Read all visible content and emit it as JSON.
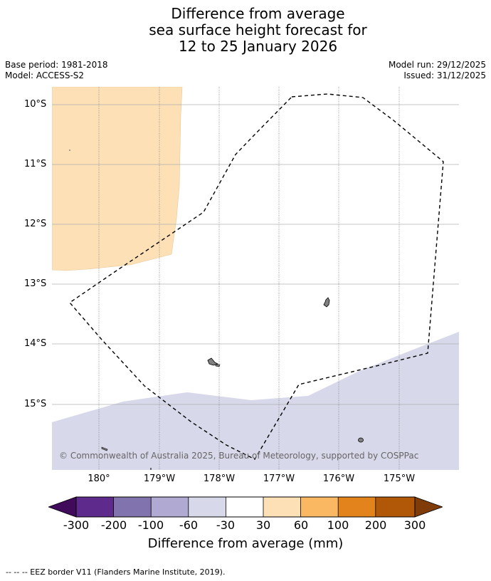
{
  "title": {
    "line1": "Difference from average",
    "line2": "sea surface height forecast for",
    "line3": "12 to 25 January 2026"
  },
  "meta": {
    "base_period": "Base period: 1981-2018",
    "model": "Model: ACCESS-S2",
    "model_run": "Model run: 29/12/2025",
    "issued": "Issued: 31/12/2025"
  },
  "latitude_labels": [
    "10°S",
    "11°S",
    "12°S",
    "13°S",
    "14°S",
    "15°S"
  ],
  "longitude_labels": [
    "180°",
    "179°W",
    "178°W",
    "177°W",
    "176°W",
    "175°W"
  ],
  "copyright": "© Commonwealth of Australia 2025, Bureau of Meteorology, supported by COSPPac",
  "colorbar": {
    "ticks": [
      "-300",
      "-200",
      "-100",
      "-60",
      "-30",
      "30",
      "60",
      "100",
      "200",
      "300"
    ],
    "colors": [
      "#3f0b5a",
      "#5e2a8c",
      "#8073ae",
      "#b0a9d1",
      "#d7d8ea",
      "#ffffff",
      "#fde0b6",
      "#fbb862",
      "#e2841b",
      "#b15808",
      "#7f3b08"
    ],
    "label": "Difference from average (mm)"
  },
  "footnote": "--  --  -- EEZ border V11 (Flanders Marine Institute, 2019).",
  "map_colors": {
    "positive_region": "#fde0b6",
    "negative_region": "#d7d8ea",
    "land": "#808080",
    "grid": "#b0b0b0"
  }
}
